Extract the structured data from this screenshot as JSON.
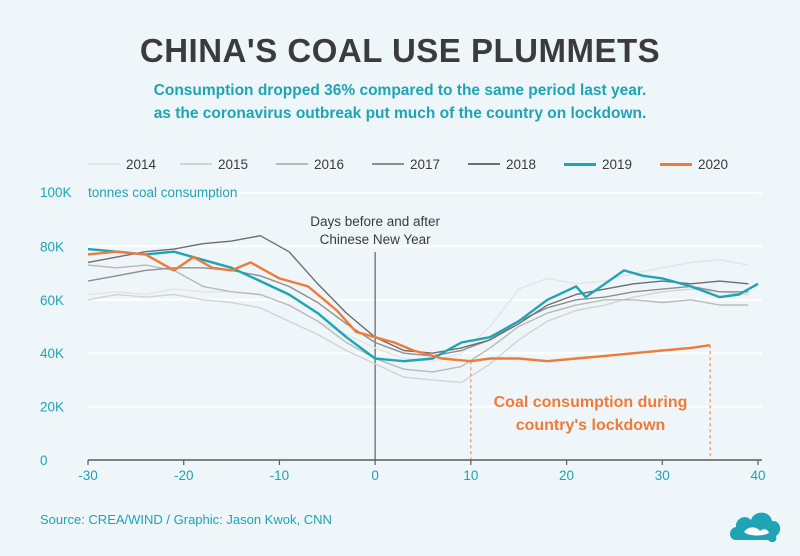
{
  "header": {
    "title": "CHINA'S COAL USE PLUMMETS",
    "subtitle_line1": "Consumption dropped 36% compared to the same period last year.",
    "subtitle_line2": "as the coronavirus outbreak put much of the country on lockdown."
  },
  "footer": {
    "source": "Source: CREA/WIND / Graphic: Jason Kwok, CNN"
  },
  "colors": {
    "accent": "#1ea4b5",
    "highlight": "#ee7b39",
    "background": "#eef6f9"
  },
  "chart_data": {
    "type": "line",
    "title": "CHINA'S COAL USE PLUMMETS",
    "subtitle": "Consumption dropped 36% compared to the same period last year. as the coronavirus outbreak put much of the country on lockdown.",
    "ylabel": "tonnes coal consumption",
    "xlabel": "",
    "xlim": [
      -30,
      40
    ],
    "ylim": [
      0,
      100000
    ],
    "xticks": [
      -30,
      -20,
      -10,
      0,
      10,
      20,
      30,
      40
    ],
    "yticks": [
      0,
      20000,
      40000,
      60000,
      80000,
      100000
    ],
    "ytick_labels": [
      "0",
      "20K",
      "40K",
      "60K",
      "80K",
      "100K"
    ],
    "grid": "horizontal",
    "legend_position": "top",
    "annotations": {
      "zero_line": "Days before and after Chinese New Year",
      "lockdown_line1": "Coal consumption during",
      "lockdown_line2": "country's lockdown",
      "lockdown_start": 10,
      "lockdown_end": 35
    },
    "series": [
      {
        "name": "2014",
        "color": "#e4e4e4",
        "x": [
          -30,
          -27,
          -24,
          -21,
          -18,
          -15,
          -12,
          -9,
          -6,
          -3,
          0,
          3,
          6,
          9,
          12,
          15,
          18,
          21,
          24,
          27,
          30,
          33,
          36,
          39
        ],
        "y": [
          62000,
          63000,
          62000,
          64000,
          63000,
          63000,
          62000,
          58000,
          52000,
          47000,
          42000,
          38000,
          37000,
          40000,
          50000,
          64000,
          68000,
          66000,
          67000,
          70000,
          72000,
          74000,
          75000,
          73000
        ]
      },
      {
        "name": "2015",
        "color": "#d3d3d3",
        "x": [
          -30,
          -27,
          -24,
          -21,
          -18,
          -15,
          -12,
          -9,
          -6,
          -3,
          0,
          3,
          6,
          9,
          12,
          15,
          18,
          21,
          24,
          27,
          30,
          33,
          36,
          39
        ],
        "y": [
          60000,
          62000,
          61000,
          62000,
          60000,
          59000,
          57000,
          52000,
          47000,
          41000,
          36000,
          31000,
          30000,
          29000,
          36000,
          45000,
          52000,
          56000,
          58000,
          61000,
          63000,
          64000,
          63000,
          62000
        ]
      },
      {
        "name": "2016",
        "color": "#b9b9b9",
        "x": [
          -30,
          -27,
          -24,
          -21,
          -18,
          -15,
          -12,
          -9,
          -6,
          -3,
          0,
          3,
          6,
          9,
          12,
          15,
          18,
          21,
          24,
          27,
          30,
          33,
          36,
          39
        ],
        "y": [
          73000,
          72000,
          73000,
          71000,
          65000,
          63000,
          62000,
          58000,
          52000,
          44000,
          38000,
          34000,
          33000,
          35000,
          42000,
          50000,
          55000,
          58000,
          60000,
          60000,
          59000,
          60000,
          58000,
          58000
        ]
      },
      {
        "name": "2017",
        "color": "#8e8e8e",
        "x": [
          -30,
          -27,
          -24,
          -21,
          -18,
          -15,
          -12,
          -9,
          -6,
          -3,
          0,
          3,
          6,
          9,
          12,
          15,
          18,
          21,
          24,
          27,
          30,
          33,
          36,
          39
        ],
        "y": [
          67000,
          69000,
          71000,
          72000,
          72000,
          71000,
          69000,
          65000,
          59000,
          51000,
          44000,
          40000,
          39000,
          41000,
          45000,
          52000,
          57000,
          60000,
          61000,
          63000,
          64000,
          65000,
          63000,
          63000
        ]
      },
      {
        "name": "2018",
        "color": "#6e6e6e",
        "x": [
          -30,
          -27,
          -24,
          -21,
          -18,
          -15,
          -12,
          -9,
          -6,
          -3,
          0,
          3,
          6,
          9,
          12,
          15,
          18,
          21,
          24,
          27,
          30,
          33,
          36,
          39
        ],
        "y": [
          74000,
          76000,
          78000,
          79000,
          81000,
          82000,
          84000,
          78000,
          66000,
          55000,
          46000,
          41000,
          40000,
          42000,
          45000,
          51000,
          58000,
          62000,
          64000,
          66000,
          67000,
          66000,
          67000,
          66000
        ]
      },
      {
        "name": "2019",
        "color": "#1ea4b5",
        "x": [
          -30,
          -27,
          -24,
          -21,
          -18,
          -15,
          -12,
          -9,
          -6,
          -3,
          0,
          3,
          6,
          9,
          12,
          15,
          18,
          21,
          22,
          24,
          26,
          28,
          30,
          33,
          36,
          38,
          40
        ],
        "y": [
          79000,
          78000,
          77000,
          78000,
          75000,
          72000,
          67000,
          62000,
          55000,
          46000,
          38000,
          37000,
          38000,
          44000,
          46000,
          52000,
          60000,
          65000,
          61000,
          66000,
          71000,
          69000,
          68000,
          65000,
          61000,
          62000,
          66000
        ]
      },
      {
        "name": "2020",
        "color": "#ee7b39",
        "x": [
          -30,
          -27,
          -24,
          -21,
          -19,
          -17,
          -15,
          -13,
          -12,
          -10,
          -7,
          -4,
          -2,
          0,
          2,
          4,
          7,
          10,
          12,
          15,
          18,
          21,
          24,
          27,
          30,
          33,
          35
        ],
        "y": [
          77000,
          78000,
          77000,
          71000,
          76000,
          72000,
          71000,
          74000,
          72000,
          68000,
          65000,
          56000,
          48000,
          46000,
          44000,
          41000,
          38000,
          37000,
          38000,
          38000,
          37000,
          38000,
          39000,
          40000,
          41000,
          42000,
          43000
        ]
      }
    ]
  }
}
